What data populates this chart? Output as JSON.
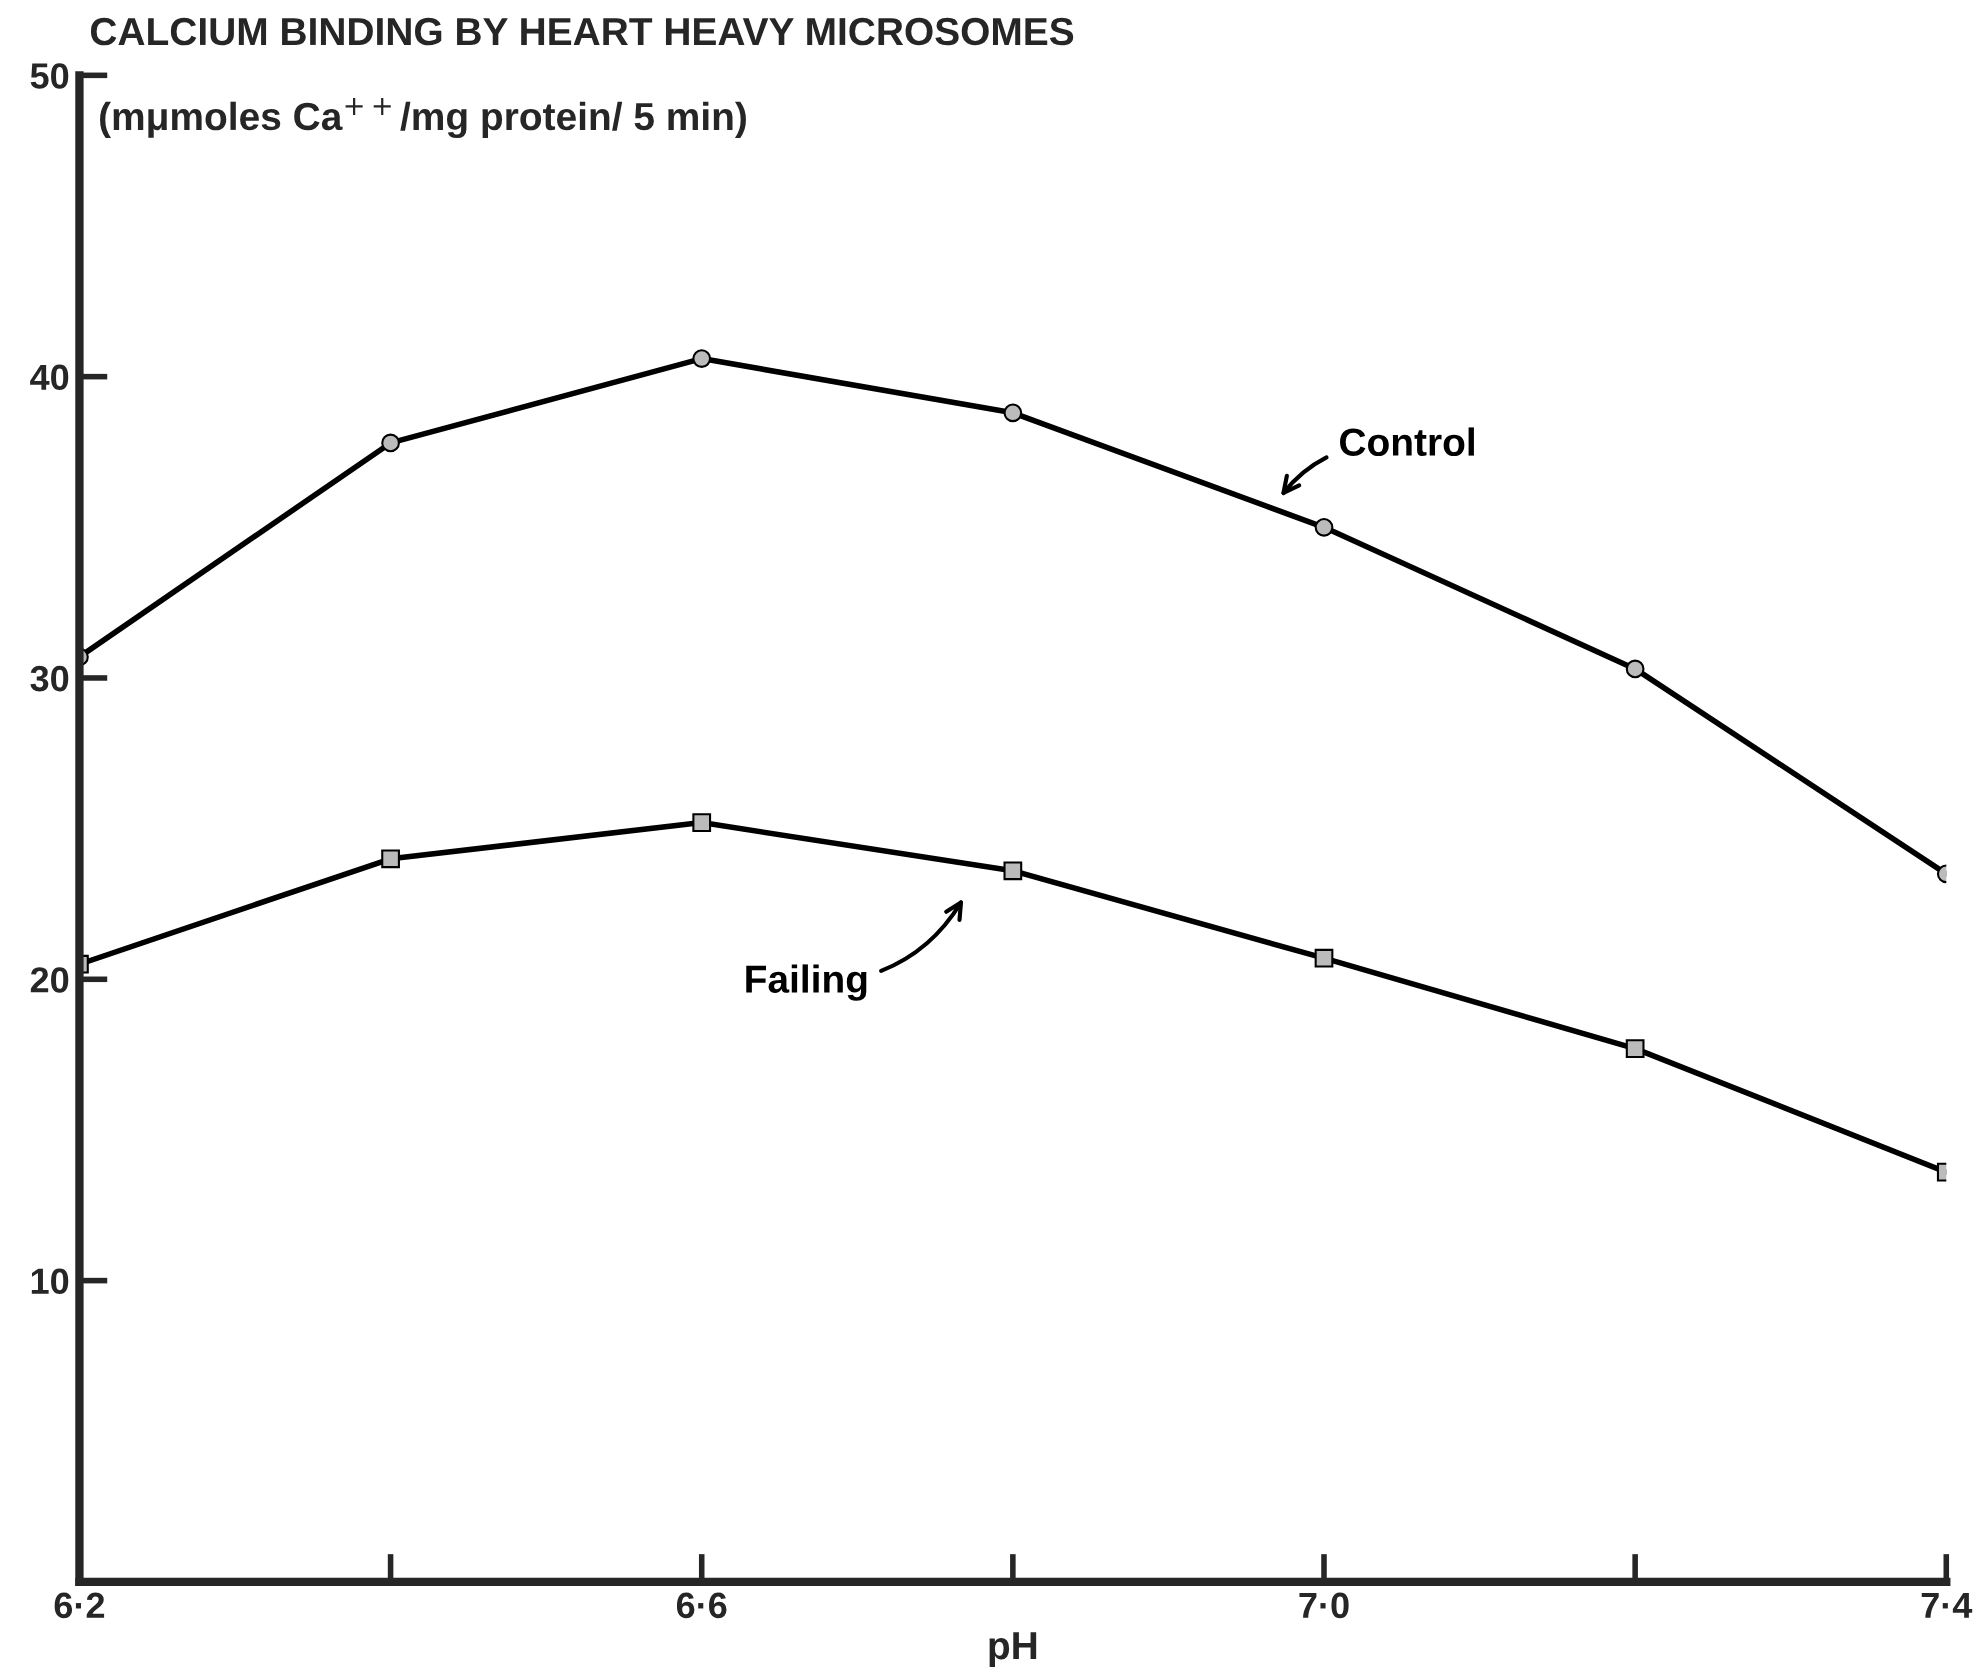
{
  "chart_data": {
    "type": "line",
    "title": "CALCIUM BINDING BY HEART HEAVY MICROSOMES",
    "ylabel": "(mμmoles Ca$^{++}$/mg protein/ 5 min)",
    "xlabel": "pH",
    "categories": [
      "6·2",
      null,
      "6·6",
      null,
      "7·0",
      null,
      "7·4"
    ],
    "series": [
      {
        "name": "Control",
        "color": "#000000",
        "marker": "circle",
        "values": [
          30.7,
          37.8,
          40.6,
          38.8,
          35.0,
          30.3,
          23.5
        ]
      },
      {
        "name": "Failing",
        "color": "#000000",
        "marker": "square",
        "values": [
          20.5,
          24.0,
          25.2,
          23.6,
          20.7,
          17.7,
          13.6
        ]
      }
    ],
    "ylim": [
      0,
      50
    ],
    "yticks": [
      10,
      20,
      30,
      40,
      50
    ],
    "grid": false,
    "legend": false,
    "line_style": "solid"
  }
}
